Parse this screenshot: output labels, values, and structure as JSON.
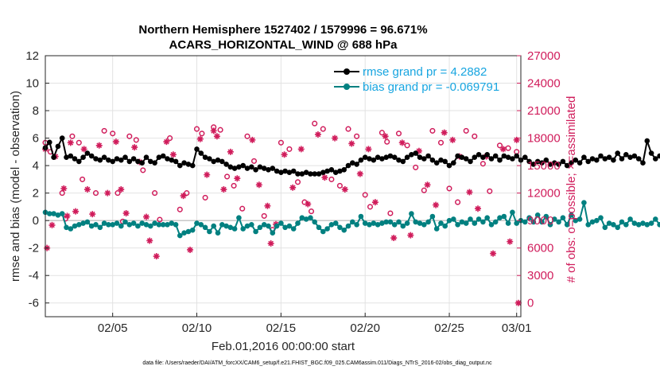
{
  "chart_data": {
    "type": "line",
    "title_line1": "Northern Hemisphere 1527402 / 1579996 = 96.671%",
    "title_line2": "ACARS_HORIZONTAL_WIND @ 688 hPa",
    "xlabel": "Feb.01,2016 00:00:00 start",
    "ylabel": "rmse and bias (model - observation)",
    "y2label": "# of obs: o=possible; ×=assimilated",
    "footnote": "data file: /Users/raeder/DAI/ATM_forcXX/CAM6_setup/f.e21.FHIST_BGC.f09_025.CAM6assim.011/Diags_NTrS_2016-02/obs_diag_output.nc",
    "xlim": [
      1,
      29.25
    ],
    "ylim": [
      -7,
      12
    ],
    "y2lim": [
      -1500,
      27000
    ],
    "x_ticks": [
      {
        "x": 5,
        "label": "02/05"
      },
      {
        "x": 10,
        "label": "02/10"
      },
      {
        "x": 15,
        "label": "02/15"
      },
      {
        "x": 20,
        "label": "02/20"
      },
      {
        "x": 25,
        "label": "02/25"
      },
      {
        "x": 29,
        "label": "03/01"
      }
    ],
    "y_ticks": [
      -6,
      -4,
      -2,
      0,
      2,
      4,
      6,
      8,
      10,
      12
    ],
    "y2_ticks": [
      0,
      3000,
      6000,
      9000,
      12000,
      15000,
      18000,
      21000,
      24000,
      27000
    ],
    "legend": {
      "rmse": "rmse grand pr = 4.2882",
      "bias": "bias grand pr = -0.069791",
      "position": "top-right"
    },
    "colors": {
      "rmse": "#000000",
      "bias": "#008080",
      "obs": "#d01c5b",
      "legend_text": "#17a5e0",
      "zero_line": "#b0b0b0"
    },
    "series": [
      {
        "name": "rmse",
        "x0": 1.0,
        "dx": 0.25,
        "values": [
          5.3,
          5.7,
          4.6,
          5.4,
          6.0,
          4.6,
          4.7,
          4.5,
          4.3,
          4.6,
          4.9,
          4.7,
          4.5,
          4.4,
          4.6,
          4.4,
          4.3,
          4.5,
          4.4,
          4.6,
          4.3,
          4.5,
          4.3,
          4.2,
          4.6,
          4.3,
          4.2,
          4.6,
          4.7,
          4.5,
          4.4,
          4.3,
          4.0,
          4.2,
          4.1,
          4.0,
          5.2,
          4.9,
          4.6,
          4.5,
          4.3,
          4.4,
          4.3,
          4.1,
          3.9,
          3.8,
          3.9,
          4.0,
          3.8,
          3.9,
          3.7,
          3.9,
          3.8,
          3.7,
          3.8,
          3.6,
          3.5,
          3.6,
          3.5,
          3.6,
          3.4,
          3.4,
          3.5,
          3.4,
          3.4,
          3.4,
          3.5,
          3.6,
          3.7,
          3.5,
          3.6,
          3.7,
          4.0,
          4.2,
          4.1,
          4.4,
          4.6,
          4.5,
          4.4,
          4.6,
          4.5,
          4.6,
          4.7,
          4.6,
          4.4,
          4.3,
          4.6,
          4.8,
          4.9,
          4.6,
          4.5,
          4.7,
          4.4,
          4.2,
          4.4,
          4.3,
          4.0,
          4.2,
          4.7,
          4.6,
          4.5,
          4.3,
          4.6,
          4.8,
          4.6,
          4.8,
          4.5,
          4.7,
          4.4,
          4.7,
          4.6,
          4.5,
          4.7,
          4.4,
          4.6,
          4.3,
          4.1,
          4.3,
          4.2,
          4.4,
          4.1,
          4.2,
          4.1,
          4.3,
          4.0,
          4.2,
          4.4,
          4.2,
          4.6,
          4.3,
          4.5,
          4.4,
          4.7,
          4.5,
          4.6,
          4.4,
          4.9,
          4.5,
          4.8,
          4.6,
          4.7,
          4.5,
          4.2,
          5.8,
          4.9,
          4.5,
          4.7,
          4.2,
          4.0,
          3.8,
          4.0,
          3.8,
          3.7,
          3.8,
          3.7,
          3.8,
          3.9,
          4.0,
          3.9,
          4.0,
          4.3,
          4.1,
          4.4,
          4.2,
          4.6,
          5.0,
          4.5,
          4.3
        ]
      },
      {
        "name": "bias",
        "x0": 1.0,
        "dx": 0.25,
        "values": [
          0.6,
          0.5,
          0.5,
          0.4,
          0.5,
          -0.5,
          -0.6,
          -0.4,
          -0.3,
          -0.2,
          -0.1,
          -0.4,
          -0.3,
          -0.5,
          -0.2,
          -0.3,
          -0.3,
          -0.2,
          -0.4,
          -0.1,
          -0.3,
          -0.2,
          -0.4,
          -0.2,
          -0.3,
          -0.4,
          -0.2,
          -0.3,
          -0.3,
          -0.3,
          -0.2,
          -0.3,
          -1.1,
          -0.9,
          -0.8,
          -0.7,
          -0.2,
          -0.3,
          -0.5,
          -0.8,
          -0.4,
          -0.9,
          -0.3,
          -0.4,
          -0.5,
          -0.6,
          0.2,
          -0.6,
          -0.4,
          -0.3,
          -0.8,
          -0.5,
          -0.3,
          -0.4,
          -0.9,
          -0.4,
          -0.2,
          -0.5,
          -0.4,
          -0.6,
          -0.2,
          0.2,
          0.1,
          0.2,
          -0.1,
          -0.5,
          -0.8,
          -0.6,
          -0.3,
          -0.2,
          -0.5,
          -0.7,
          -0.4,
          -0.1,
          -0.3,
          0.3,
          -0.2,
          -0.3,
          -0.2,
          -0.3,
          -0.2,
          -0.1,
          -0.1,
          -0.3,
          -0.1,
          -0.4,
          -0.2,
          0.5,
          -0.1,
          -0.2,
          -0.3,
          -0.1,
          0.3,
          -0.6,
          -0.2,
          -0.4,
          0.0,
          0.1,
          -0.3,
          -0.1,
          -0.2,
          0.1,
          -0.2,
          0.1,
          -0.1,
          0.2,
          -0.3,
          -0.1,
          0.2,
          0.3,
          -0.2,
          0.6,
          -0.2,
          0.0,
          -0.1,
          0.2,
          -0.1,
          0.4,
          -0.1,
          0.3,
          -0.3,
          0.1,
          -0.1,
          0.2,
          -0.3,
          0.4,
          0.0,
          0.1,
          1.3,
          -0.3,
          -0.1,
          0.0,
          0.2,
          -0.5,
          -0.2,
          -0.3,
          -0.5,
          -0.1,
          -0.3,
          0.1,
          -0.2,
          -0.3,
          -0.2,
          -0.3,
          -0.2,
          0.1,
          -0.3,
          0.3,
          0.6,
          0.2,
          0.3,
          -0.3,
          0.4,
          0.0,
          0.1,
          0.0,
          -0.2,
          0.1,
          0.4,
          0.0,
          0.2,
          0.3,
          0.0,
          -0.4,
          -0.2,
          0.3,
          -0.4,
          0.1,
          -0.1,
          -0.2,
          0.6,
          -0.2
        ]
      },
      {
        "name": "obs_possible",
        "x": [
          1.0,
          1.3,
          2.0,
          2.2,
          2.6,
          3.0,
          3.2,
          4.0,
          4.5,
          5.0,
          5.3,
          5.6,
          6.0,
          6.4,
          6.8,
          7.5,
          7.8,
          8.4,
          9.0,
          9.4,
          10.0,
          10.3,
          10.5,
          11.0,
          11.4,
          11.8,
          12.2,
          12.7,
          13.0,
          13.4,
          14.0,
          14.5,
          15.0,
          15.5,
          16.0,
          16.4,
          16.8,
          17.0,
          17.5,
          18.0,
          18.5,
          19.0,
          19.5,
          20.0,
          20.3,
          21.0,
          21.3,
          21.5,
          22.0,
          22.5,
          23.0,
          23.5,
          24.0,
          24.5,
          25.0,
          25.5,
          26.0,
          26.5,
          27.0,
          27.4,
          28.0,
          28.5,
          29.0
        ],
        "values": [
          17500,
          16500,
          12000,
          9200,
          18200,
          17500,
          13500,
          12000,
          18800,
          18500,
          12000,
          8900,
          18200,
          17800,
          14500,
          12000,
          9100,
          18000,
          10200,
          12000,
          19000,
          18500,
          11500,
          19200,
          18900,
          13800,
          12800,
          10300,
          18200,
          15500,
          9500,
          8000,
          17500,
          16800,
          13200,
          11000,
          10000,
          19600,
          19000,
          13500,
          12800,
          19000,
          18200,
          11800,
          10500,
          18600,
          17600,
          9800,
          18500,
          17200,
          14800,
          12300,
          18800,
          17500,
          12500,
          11000,
          18800,
          18200,
          15200,
          12200,
          17200,
          16900,
          16500
        ]
      },
      {
        "name": "obs_assimilated",
        "x": [
          1.0,
          1.1,
          1.4,
          1.6,
          2.1,
          2.3,
          2.5,
          2.8,
          3.3,
          3.5,
          3.8,
          4.2,
          4.7,
          5.2,
          5.5,
          5.8,
          6.3,
          6.6,
          7.0,
          7.2,
          7.6,
          8.2,
          8.6,
          9.2,
          9.6,
          10.2,
          10.6,
          11.0,
          11.2,
          11.6,
          12.0,
          12.4,
          13.3,
          13.7,
          14.2,
          14.4,
          14.7,
          15.2,
          15.7,
          16.2,
          16.6,
          17.2,
          17.6,
          18.2,
          18.8,
          19.2,
          19.7,
          20.2,
          20.6,
          21.2,
          21.7,
          22.2,
          22.7,
          23.2,
          23.7,
          24.2,
          24.7,
          25.2,
          25.6,
          26.2,
          26.7,
          27.2,
          27.6,
          28.2,
          28.6,
          29.0
        ],
        "values": [
          16800,
          6000,
          8500,
          16000,
          12500,
          9500,
          17500,
          10000,
          16800,
          12400,
          9700,
          17200,
          12000,
          17600,
          12400,
          9800,
          17000,
          15400,
          9400,
          6800,
          5100,
          17600,
          16200,
          11700,
          5800,
          17900,
          14000,
          18800,
          18200,
          12400,
          16500,
          13600,
          17800,
          12900,
          10600,
          6500,
          8600,
          16200,
          12600,
          16800,
          10800,
          18400,
          13700,
          18000,
          12400,
          17400,
          14100,
          16800,
          11000,
          18200,
          7100,
          17500,
          7400,
          16600,
          12900,
          10700,
          18600,
          17800,
          16000,
          12100,
          10300,
          16000,
          5400,
          16800,
          6700,
          17800
        ]
      },
      {
        "name": "obs_assimilated_last",
        "x": [
          29.1
        ],
        "values": [
          0
        ]
      }
    ]
  }
}
